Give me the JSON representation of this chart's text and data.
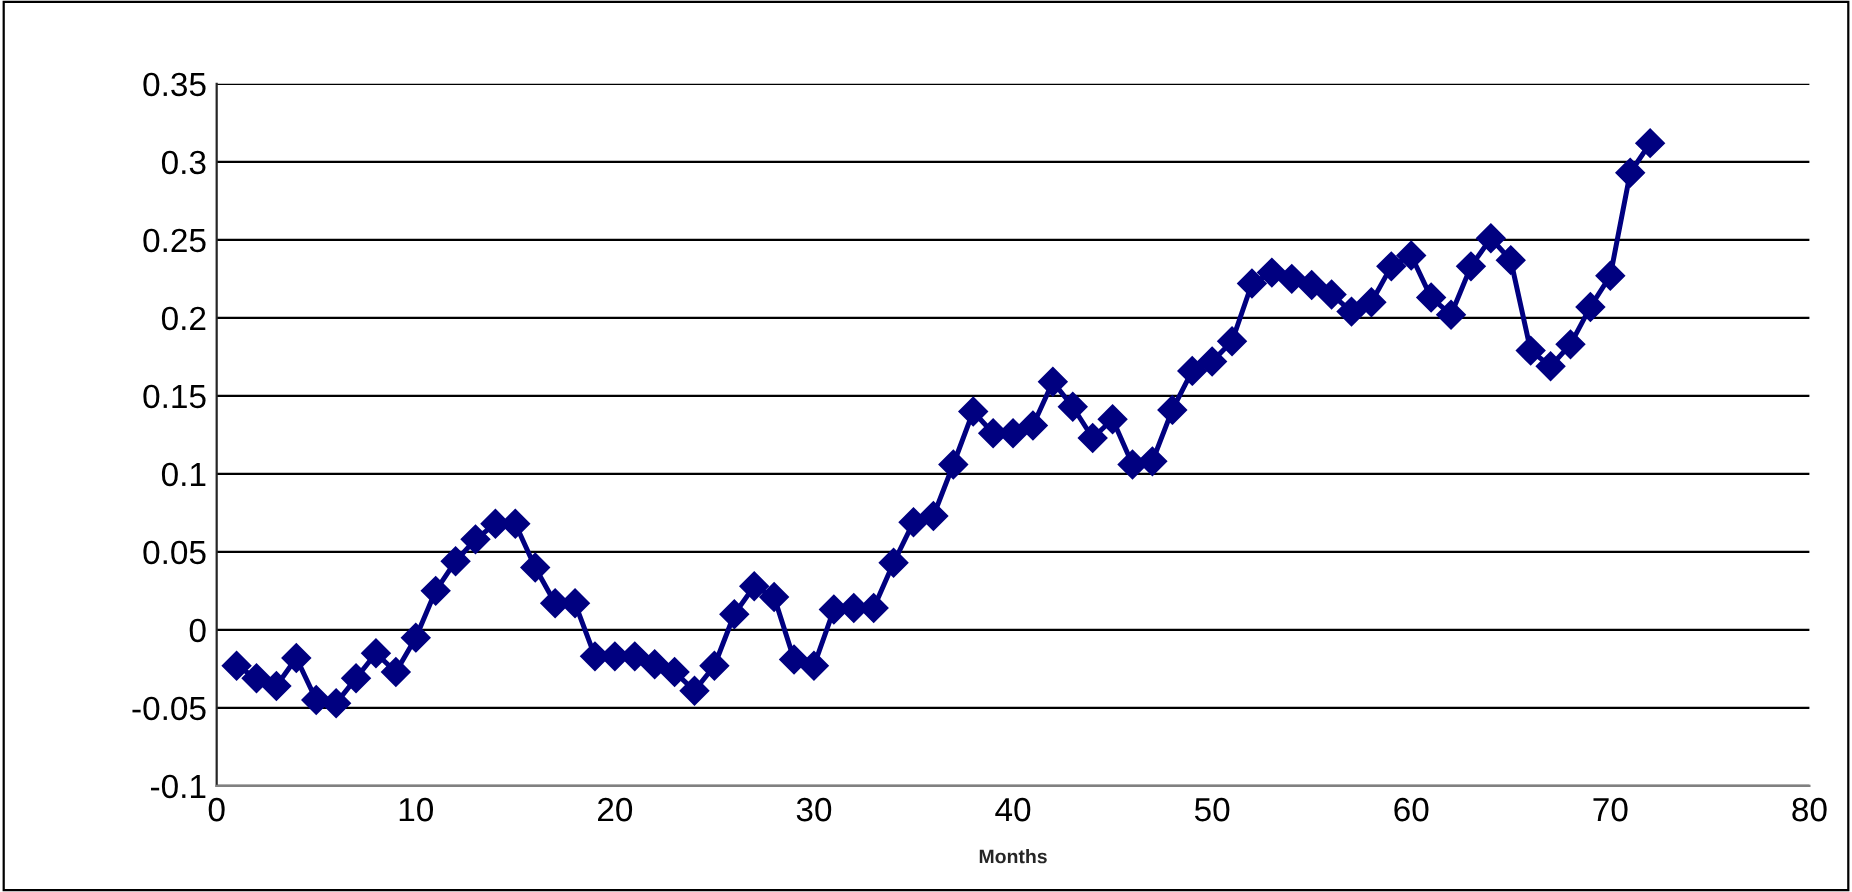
{
  "chart_data": {
    "type": "line",
    "xlabel": "Months",
    "x": [
      1,
      2,
      3,
      4,
      5,
      6,
      7,
      8,
      9,
      10,
      11,
      12,
      13,
      14,
      15,
      16,
      17,
      18,
      19,
      20,
      21,
      22,
      23,
      24,
      25,
      26,
      27,
      28,
      29,
      30,
      31,
      32,
      33,
      34,
      35,
      36,
      37,
      38,
      39,
      40,
      41,
      42,
      43,
      44,
      45,
      46,
      47,
      48,
      49,
      50,
      51,
      52,
      53,
      54,
      55,
      56,
      57,
      58,
      59,
      60,
      61,
      62,
      63,
      64,
      65,
      66,
      67,
      68,
      69,
      70,
      71,
      72
    ],
    "series": [
      {
        "color": "#000080",
        "values": [
          -0.023,
          -0.031,
          -0.036,
          -0.018,
          -0.045,
          -0.047,
          -0.031,
          -0.015,
          -0.027,
          -0.005,
          0.025,
          0.044,
          0.058,
          0.068,
          0.068,
          0.04,
          0.017,
          0.017,
          -0.017,
          -0.017,
          -0.017,
          -0.022,
          -0.027,
          -0.039,
          -0.023,
          0.01,
          0.028,
          0.021,
          -0.019,
          -0.023,
          0.013,
          0.014,
          0.014,
          0.043,
          0.069,
          0.073,
          0.106,
          0.14,
          0.126,
          0.126,
          0.131,
          0.159,
          0.143,
          0.123,
          0.135,
          0.106,
          0.108,
          0.141,
          0.166,
          0.172,
          0.185,
          0.222,
          0.229,
          0.225,
          0.221,
          0.215,
          0.204,
          0.21,
          0.233,
          0.24,
          0.213,
          0.202,
          0.233,
          0.251,
          0.237,
          0.179,
          0.169,
          0.183,
          0.207,
          0.227,
          0.293,
          0.312
        ]
      }
    ],
    "xlim": [
      0,
      80
    ],
    "xticks": [
      0,
      10,
      20,
      30,
      40,
      50,
      60,
      70,
      80
    ],
    "ylim": [
      -0.1,
      0.35
    ],
    "yticks": [
      -0.1,
      -0.05,
      0,
      0.05,
      0.1,
      0.15,
      0.2,
      0.25,
      0.3,
      0.35
    ],
    "grid": "y",
    "legend": false,
    "marker": "diamond",
    "line_style": "solid"
  }
}
